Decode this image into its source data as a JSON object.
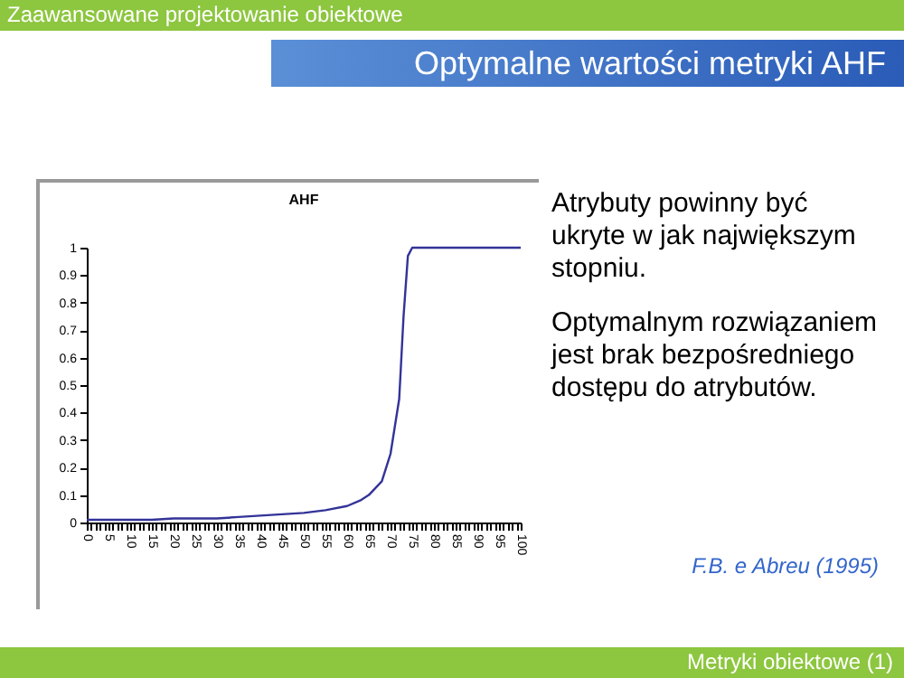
{
  "chart_data": {
    "type": "line",
    "title": "AHF",
    "annotations": [
      "Zaawansowane projektowanie obiektowe",
      "Optymalne wartości metryki AHF",
      "Atrybuty powinny być ukryte w jak największym stopniu.",
      "Optymalnym rozwiązaniem jest brak bezpośredniego dostępu do atrybutów.",
      "F.B. e Abreu (1995)",
      "Metryki obiektowe (1)"
    ],
    "x": [
      0,
      5,
      10,
      15,
      20,
      25,
      30,
      35,
      40,
      45,
      50,
      55,
      60,
      63,
      65,
      68,
      70,
      72,
      73,
      74,
      75,
      80,
      85,
      90,
      95,
      100
    ],
    "series": [
      {
        "color": "#333399",
        "values": [
          0.01,
          0.01,
          0.01,
          0.01,
          0.015,
          0.015,
          0.015,
          0.02,
          0.025,
          0.03,
          0.035,
          0.045,
          0.06,
          0.08,
          0.1,
          0.15,
          0.25,
          0.45,
          0.75,
          0.97,
          1,
          1,
          1,
          1,
          1,
          1
        ]
      }
    ],
    "xlim": [
      0,
      100
    ],
    "xticks": [
      0,
      {
        "value": 1,
        "label": null
      },
      {
        "value": 2,
        "label": null
      },
      {
        "value": 3,
        "label": null
      },
      {
        "value": 4,
        "label": null
      },
      5,
      {
        "value": 6,
        "label": null
      },
      {
        "value": 7,
        "label": null
      },
      {
        "value": 8,
        "label": null
      },
      {
        "value": 9,
        "label": null
      },
      10,
      {
        "value": 11,
        "label": null
      },
      {
        "value": 12,
        "label": null
      },
      {
        "value": 13,
        "label": null
      },
      {
        "value": 14,
        "label": null
      },
      15,
      {
        "value": 16,
        "label": null
      },
      {
        "value": 17,
        "label": null
      },
      {
        "value": 18,
        "label": null
      },
      {
        "value": 19,
        "label": null
      },
      20,
      {
        "value": 21,
        "label": null
      },
      {
        "value": 22,
        "label": null
      },
      {
        "value": 23,
        "label": null
      },
      {
        "value": 24,
        "label": null
      },
      25,
      {
        "value": 26,
        "label": null
      },
      {
        "value": 27,
        "label": null
      },
      {
        "value": 28,
        "label": null
      },
      {
        "value": 29,
        "label": null
      },
      30,
      {
        "value": 31,
        "label": null
      },
      {
        "value": 32,
        "label": null
      },
      {
        "value": 33,
        "label": null
      },
      {
        "value": 34,
        "label": null
      },
      35,
      {
        "value": 36,
        "label": null
      },
      {
        "value": 37,
        "label": null
      },
      {
        "value": 38,
        "label": null
      },
      {
        "value": 39,
        "label": null
      },
      40,
      {
        "value": 41,
        "label": null
      },
      {
        "value": 42,
        "label": null
      },
      {
        "value": 43,
        "label": null
      },
      {
        "value": 44,
        "label": null
      },
      45,
      {
        "value": 46,
        "label": null
      },
      {
        "value": 47,
        "label": null
      },
      {
        "value": 48,
        "label": null
      },
      {
        "value": 49,
        "label": null
      },
      50,
      {
        "value": 51,
        "label": null
      },
      {
        "value": 52,
        "label": null
      },
      {
        "value": 53,
        "label": null
      },
      {
        "value": 54,
        "label": null
      },
      55,
      {
        "value": 56,
        "label": null
      },
      {
        "value": 57,
        "label": null
      },
      {
        "value": 58,
        "label": null
      },
      {
        "value": 59,
        "label": null
      },
      60,
      {
        "value": 61,
        "label": null
      },
      {
        "value": 62,
        "label": null
      },
      {
        "value": 63,
        "label": null
      },
      {
        "value": 64,
        "label": null
      },
      65,
      {
        "value": 66,
        "label": null
      },
      {
        "value": 67,
        "label": null
      },
      {
        "value": 68,
        "label": null
      },
      {
        "value": 69,
        "label": null
      },
      70,
      {
        "value": 71,
        "label": null
      },
      {
        "value": 72,
        "label": null
      },
      {
        "value": 73,
        "label": null
      },
      {
        "value": 74,
        "label": null
      },
      75,
      {
        "value": 76,
        "label": null
      },
      {
        "value": 77,
        "label": null
      },
      {
        "value": 78,
        "label": null
      },
      {
        "value": 79,
        "label": null
      },
      80,
      {
        "value": 81,
        "label": null
      },
      {
        "value": 82,
        "label": null
      },
      {
        "value": 83,
        "label": null
      },
      {
        "value": 84,
        "label": null
      },
      85,
      {
        "value": 86,
        "label": null
      },
      {
        "value": 87,
        "label": null
      },
      {
        "value": 88,
        "label": null
      },
      {
        "value": 89,
        "label": null
      },
      90,
      {
        "value": 91,
        "label": null
      },
      {
        "value": 92,
        "label": null
      },
      {
        "value": 93,
        "label": null
      },
      {
        "value": 94,
        "label": null
      },
      95,
      {
        "value": 96,
        "label": null
      },
      {
        "value": 97,
        "label": null
      },
      {
        "value": 98,
        "label": null
      },
      {
        "value": 99,
        "label": null
      },
      100
    ],
    "ylim": [
      0,
      1
    ],
    "yticks": [
      0,
      0.1,
      0.2,
      0.3,
      0.4,
      0.5,
      0.6,
      0.7,
      0.8,
      0.9,
      1
    ],
    "line_style": "solid"
  }
}
